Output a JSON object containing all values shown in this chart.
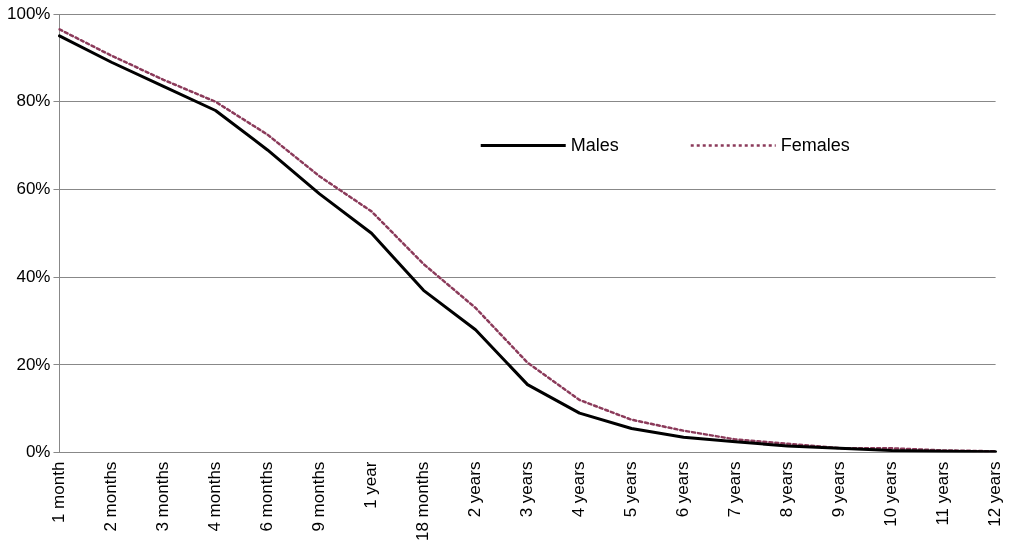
{
  "chart_data": {
    "type": "line",
    "categories": [
      "1 month",
      "2 months",
      "3 months",
      "4 months",
      "6 months",
      "9 months",
      "1 year",
      "18 months",
      "2 years",
      "3 years",
      "4 years",
      "5 years",
      "6 years",
      "7 years",
      "8 years",
      "9 years",
      "10 years",
      "11 years",
      "12 years"
    ],
    "series": [
      {
        "name": "Males",
        "color": "#000000",
        "line_style": "solid",
        "values": [
          95,
          89,
          83.5,
          78,
          69,
          59,
          50,
          37,
          28,
          15.5,
          9,
          5.5,
          3.5,
          2.5,
          1.5,
          1,
          0.5,
          0.3,
          0.2
        ]
      },
      {
        "name": "Females",
        "color": "#8b3a5a",
        "line_style": "dotted",
        "values": [
          96.5,
          90.5,
          85,
          80,
          72.5,
          63,
          55,
          43,
          33,
          20.5,
          12,
          7.5,
          5,
          3,
          2,
          1,
          1,
          0.5,
          0.3
        ]
      }
    ],
    "ylim": [
      0,
      100
    ],
    "yticks": [
      {
        "value": 0,
        "label": "0%"
      },
      {
        "value": 20,
        "label": "20%"
      },
      {
        "value": 40,
        "label": "40%"
      },
      {
        "value": 60,
        "label": "60%"
      },
      {
        "value": 80,
        "label": "80%"
      },
      {
        "value": 100,
        "label": "100%"
      }
    ],
    "grid": "y",
    "legend": "top right",
    "marker": "none"
  }
}
